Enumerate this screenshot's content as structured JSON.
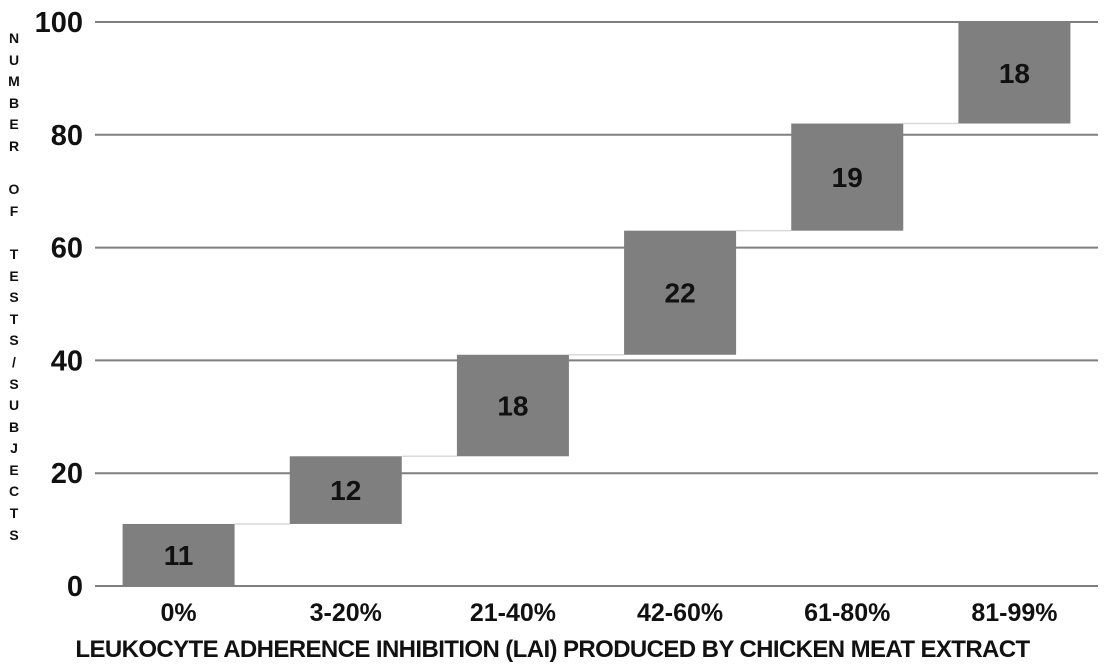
{
  "chart_data": {
    "type": "bar",
    "subtype": "waterfall",
    "categories": [
      "0%",
      "3-20%",
      "21-40%",
      "42-60%",
      "61-80%",
      "81-99%"
    ],
    "values": [
      11,
      12,
      18,
      22,
      19,
      18
    ],
    "ylabel": "NUMBER OF TESTS/SUBJECTS",
    "xlabel": "LEUKOCYTE ADHERENCE INHIBITION (LAI) PRODUCED BY CHICKEN MEAT EXTRACT",
    "ylim": [
      0,
      100
    ],
    "yticks": [
      0,
      20,
      40,
      60,
      80,
      100
    ],
    "grid": true,
    "bar_color": "#7f7f7f",
    "grid_color": "#7f7f7f",
    "connector_color": "#d9d9d9"
  }
}
